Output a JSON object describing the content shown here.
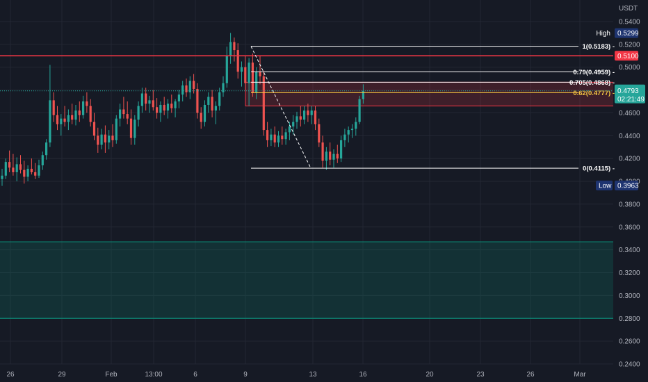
{
  "chart_data": {
    "type": "candlestick",
    "currency": "USDT",
    "y_ticks": [
      "0.5400",
      "0.5200",
      "0.5000",
      "0.4800",
      "0.4600",
      "0.4400",
      "0.4200",
      "0.4000",
      "0.3800",
      "0.3600",
      "0.3400",
      "0.3200",
      "0.3000",
      "0.2800",
      "0.2600",
      "0.2400"
    ],
    "x_ticks": [
      "26",
      "29",
      "Feb",
      "13:00",
      "6",
      "9",
      "13",
      "16",
      "20",
      "23",
      "26",
      "Mar"
    ],
    "high_label": "High",
    "high_value": "0.5299",
    "low_label": "Low",
    "low_value": "0.3963",
    "resistance_value": "0.5100",
    "last_price": "0.4793",
    "countdown": "02:21:49",
    "fib_levels": [
      {
        "label": "1(0.5183)",
        "value": 0.5183,
        "color": "#ffffff"
      },
      {
        "label": "0.79(0.4959)",
        "value": 0.4959,
        "color": "#ffffff"
      },
      {
        "label": "0.705(0.4868)",
        "value": 0.4868,
        "color": "#ffffff"
      },
      {
        "label": "0.62(0.4777)",
        "value": 0.4777,
        "color": "#f5c542"
      },
      {
        "label": "0(0.4115)",
        "value": 0.4115,
        "color": "#ffffff"
      }
    ],
    "zones": [
      {
        "name": "supply",
        "from": 0.4868,
        "to": 0.466,
        "color": "#f23645"
      },
      {
        "name": "demand",
        "from": 0.347,
        "to": 0.28,
        "color": "#089981"
      }
    ],
    "resistance_line": 0.51,
    "ohlc": [
      [
        0.402,
        0.411,
        0.396,
        0.405
      ],
      [
        0.405,
        0.42,
        0.402,
        0.417
      ],
      [
        0.417,
        0.427,
        0.408,
        0.412
      ],
      [
        0.412,
        0.424,
        0.405,
        0.408
      ],
      [
        0.408,
        0.421,
        0.4,
        0.415
      ],
      [
        0.415,
        0.423,
        0.407,
        0.41
      ],
      [
        0.41,
        0.418,
        0.398,
        0.404
      ],
      [
        0.404,
        0.414,
        0.4,
        0.411
      ],
      [
        0.411,
        0.42,
        0.406,
        0.408
      ],
      [
        0.408,
        0.416,
        0.402,
        0.405
      ],
      [
        0.405,
        0.419,
        0.403,
        0.414
      ],
      [
        0.414,
        0.426,
        0.41,
        0.423
      ],
      [
        0.423,
        0.437,
        0.419,
        0.434
      ],
      [
        0.434,
        0.502,
        0.43,
        0.471
      ],
      [
        0.471,
        0.478,
        0.452,
        0.458
      ],
      [
        0.458,
        0.466,
        0.445,
        0.45
      ],
      [
        0.45,
        0.459,
        0.44,
        0.455
      ],
      [
        0.455,
        0.466,
        0.448,
        0.452
      ],
      [
        0.452,
        0.463,
        0.445,
        0.458
      ],
      [
        0.458,
        0.468,
        0.45,
        0.454
      ],
      [
        0.454,
        0.467,
        0.449,
        0.462
      ],
      [
        0.462,
        0.47,
        0.452,
        0.458
      ],
      [
        0.458,
        0.475,
        0.455,
        0.47
      ],
      [
        0.47,
        0.478,
        0.46,
        0.466
      ],
      [
        0.466,
        0.472,
        0.448,
        0.452
      ],
      [
        0.452,
        0.46,
        0.436,
        0.44
      ],
      [
        0.44,
        0.447,
        0.425,
        0.432
      ],
      [
        0.432,
        0.446,
        0.428,
        0.441
      ],
      [
        0.441,
        0.449,
        0.425,
        0.434
      ],
      [
        0.434,
        0.445,
        0.428,
        0.44
      ],
      [
        0.44,
        0.45,
        0.43,
        0.436
      ],
      [
        0.436,
        0.458,
        0.433,
        0.455
      ],
      [
        0.455,
        0.468,
        0.448,
        0.463
      ],
      [
        0.463,
        0.474,
        0.455,
        0.459
      ],
      [
        0.459,
        0.47,
        0.45,
        0.455
      ],
      [
        0.455,
        0.463,
        0.432,
        0.438
      ],
      [
        0.438,
        0.458,
        0.432,
        0.454
      ],
      [
        0.454,
        0.47,
        0.448,
        0.466
      ],
      [
        0.466,
        0.482,
        0.46,
        0.477
      ],
      [
        0.477,
        0.482,
        0.462,
        0.468
      ],
      [
        0.468,
        0.475,
        0.46,
        0.471
      ],
      [
        0.471,
        0.48,
        0.462,
        0.465
      ],
      [
        0.465,
        0.473,
        0.455,
        0.46
      ],
      [
        0.46,
        0.47,
        0.452,
        0.467
      ],
      [
        0.467,
        0.474,
        0.458,
        0.462
      ],
      [
        0.462,
        0.472,
        0.455,
        0.468
      ],
      [
        0.468,
        0.476,
        0.46,
        0.464
      ],
      [
        0.464,
        0.472,
        0.456,
        0.47
      ],
      [
        0.47,
        0.48,
        0.464,
        0.476
      ],
      [
        0.476,
        0.488,
        0.47,
        0.484
      ],
      [
        0.484,
        0.49,
        0.474,
        0.478
      ],
      [
        0.478,
        0.492,
        0.472,
        0.488
      ],
      [
        0.488,
        0.494,
        0.477,
        0.481
      ],
      [
        0.481,
        0.486,
        0.455,
        0.46
      ],
      [
        0.46,
        0.465,
        0.446,
        0.452
      ],
      [
        0.452,
        0.471,
        0.448,
        0.467
      ],
      [
        0.467,
        0.478,
        0.46,
        0.474
      ],
      [
        0.474,
        0.48,
        0.456,
        0.462
      ],
      [
        0.462,
        0.47,
        0.45,
        0.466
      ],
      [
        0.466,
        0.482,
        0.462,
        0.478
      ],
      [
        0.478,
        0.492,
        0.474,
        0.486
      ],
      [
        0.486,
        0.518,
        0.482,
        0.51
      ],
      [
        0.51,
        0.53,
        0.503,
        0.522
      ],
      [
        0.522,
        0.526,
        0.505,
        0.515
      ],
      [
        0.515,
        0.521,
        0.49,
        0.496
      ],
      [
        0.496,
        0.505,
        0.483,
        0.5
      ],
      [
        0.5,
        0.51,
        0.48,
        0.486
      ],
      [
        0.486,
        0.508,
        0.466,
        0.504
      ],
      [
        0.504,
        0.512,
        0.474,
        0.478
      ],
      [
        0.478,
        0.5,
        0.472,
        0.496
      ],
      [
        0.496,
        0.51,
        0.485,
        0.492
      ],
      [
        0.492,
        0.497,
        0.44,
        0.445
      ],
      [
        0.445,
        0.452,
        0.43,
        0.436
      ],
      [
        0.436,
        0.446,
        0.431,
        0.441
      ],
      [
        0.441,
        0.448,
        0.43,
        0.434
      ],
      [
        0.434,
        0.444,
        0.43,
        0.44
      ],
      [
        0.44,
        0.448,
        0.432,
        0.437
      ],
      [
        0.437,
        0.446,
        0.432,
        0.443
      ],
      [
        0.443,
        0.452,
        0.436,
        0.448
      ],
      [
        0.448,
        0.458,
        0.441,
        0.452
      ],
      [
        0.452,
        0.461,
        0.446,
        0.457
      ],
      [
        0.457,
        0.466,
        0.448,
        0.454
      ],
      [
        0.454,
        0.466,
        0.45,
        0.462
      ],
      [
        0.462,
        0.468,
        0.452,
        0.458
      ],
      [
        0.458,
        0.466,
        0.45,
        0.462
      ],
      [
        0.462,
        0.466,
        0.445,
        0.45
      ],
      [
        0.45,
        0.455,
        0.43,
        0.434
      ],
      [
        0.434,
        0.44,
        0.412,
        0.418
      ],
      [
        0.418,
        0.43,
        0.41,
        0.426
      ],
      [
        0.426,
        0.434,
        0.414,
        0.419
      ],
      [
        0.419,
        0.428,
        0.412,
        0.424
      ],
      [
        0.424,
        0.432,
        0.416,
        0.42
      ],
      [
        0.42,
        0.44,
        0.417,
        0.436
      ],
      [
        0.436,
        0.446,
        0.43,
        0.441
      ],
      [
        0.441,
        0.448,
        0.434,
        0.445
      ],
      [
        0.445,
        0.45,
        0.438,
        0.446
      ],
      [
        0.446,
        0.456,
        0.44,
        0.452
      ],
      [
        0.452,
        0.475,
        0.45,
        0.472
      ],
      [
        0.472,
        0.485,
        0.468,
        0.4793
      ]
    ]
  }
}
